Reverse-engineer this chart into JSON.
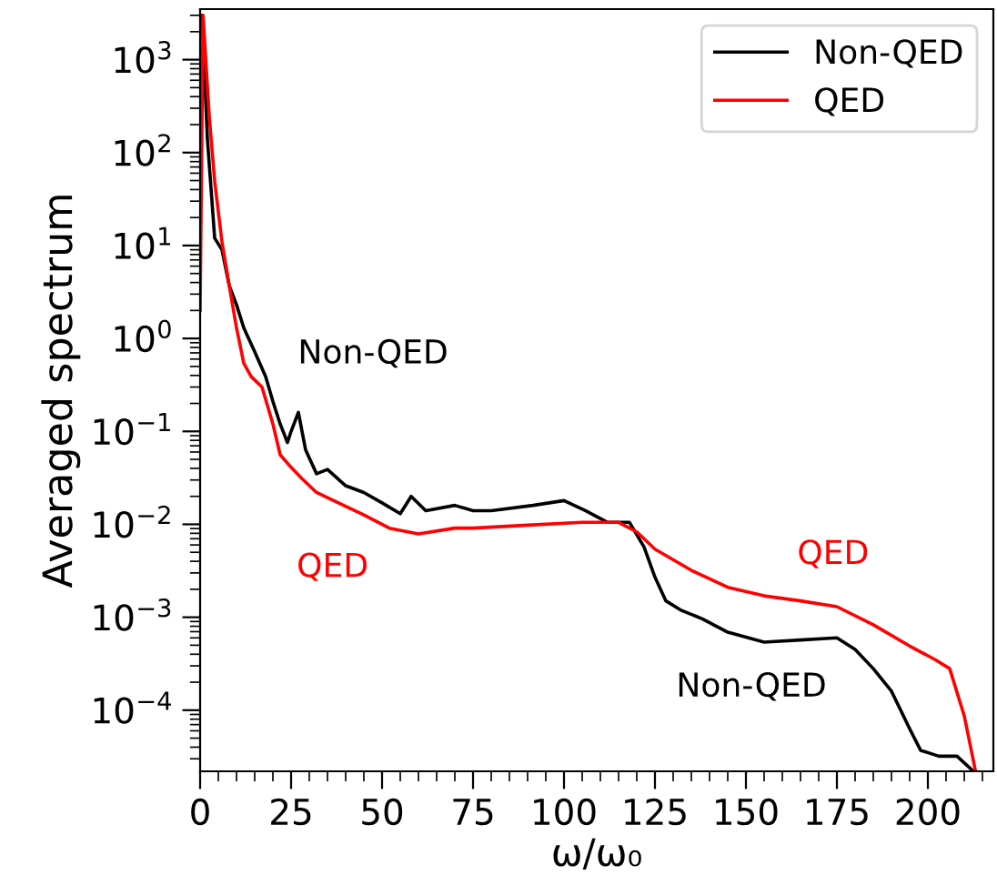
{
  "chart_data": {
    "type": "line",
    "xlabel": "ω/ω₀",
    "ylabel": "Averaged spectrum",
    "log": "y",
    "xlim": [
      0,
      218
    ],
    "ylim": [
      2.2e-05,
      3500
    ],
    "xticks": [
      0,
      25,
      50,
      75,
      100,
      125,
      150,
      175,
      200
    ],
    "yticks": [
      {
        "value": 0.0001,
        "label": "10$^{−4}$"
      },
      {
        "value": 0.001,
        "label": "10$^{−3}$"
      },
      {
        "value": 0.01,
        "label": "10$^{−2}$"
      },
      {
        "value": 0.1,
        "label": "10$^{−1}$"
      },
      {
        "value": 1,
        "label": "10$^{0}$"
      },
      {
        "value": 10,
        "label": "10$^{1}$"
      },
      {
        "value": 100,
        "label": "10$^{2}$"
      },
      {
        "value": 1000,
        "label": "10$^{3}$"
      }
    ],
    "grid": false,
    "legend": "top right",
    "marker": "none",
    "line_style": "solid",
    "series": [
      {
        "name": "Non-QED",
        "color": "#000000",
        "x": [
          0.5,
          2,
          4,
          6,
          8,
          10,
          12,
          15,
          18,
          20,
          22,
          24,
          25,
          27,
          29,
          32,
          35,
          40,
          45,
          50,
          55,
          58,
          62,
          70,
          75,
          80,
          91.5,
          100,
          106,
          112,
          118,
          122,
          125,
          128,
          132,
          138,
          145,
          155,
          165,
          175,
          180,
          185,
          190,
          195,
          198,
          203,
          208,
          212
        ],
        "values": [
          3000,
          140,
          12,
          9,
          3.7,
          2.3,
          1.3,
          0.72,
          0.39,
          0.21,
          0.12,
          0.076,
          0.1,
          0.16,
          0.063,
          0.035,
          0.039,
          0.026,
          0.022,
          0.017,
          0.013,
          0.02,
          0.014,
          0.016,
          0.014,
          0.014,
          0.016,
          0.018,
          0.014,
          0.0105,
          0.0105,
          0.0057,
          0.0027,
          0.0015,
          0.0012,
          0.00096,
          0.00069,
          0.00054,
          0.00057,
          0.0006,
          0.00045,
          0.00028,
          0.00016,
          6.3e-05,
          3.7e-05,
          3.2e-05,
          3.2e-05,
          2.3e-05
        ]
      },
      {
        "name": "QED",
        "color": "#ff0000",
        "x": [
          0,
          0.8,
          2.5,
          4,
          6,
          8,
          10,
          12,
          14,
          17,
          20,
          22,
          25,
          28,
          32,
          38,
          45,
          52,
          60,
          70,
          75,
          90,
          105,
          115,
          120,
          125,
          135,
          145,
          155,
          165,
          175,
          185,
          195,
          202,
          206,
          210,
          213
        ],
        "values": [
          2,
          3000,
          250,
          49,
          11,
          3.7,
          1.3,
          0.54,
          0.39,
          0.3,
          0.12,
          0.056,
          0.041,
          0.031,
          0.022,
          0.017,
          0.0126,
          0.0091,
          0.0079,
          0.0091,
          0.0091,
          0.0098,
          0.0105,
          0.0105,
          0.0083,
          0.0054,
          0.0032,
          0.0021,
          0.0017,
          0.0015,
          0.0013,
          0.00083,
          0.00049,
          0.00035,
          0.00028,
          8.7e-05,
          2.3e-05
        ]
      }
    ],
    "annotations": [
      "Non-QED",
      "QED",
      "Non-QED",
      "QED"
    ]
  }
}
